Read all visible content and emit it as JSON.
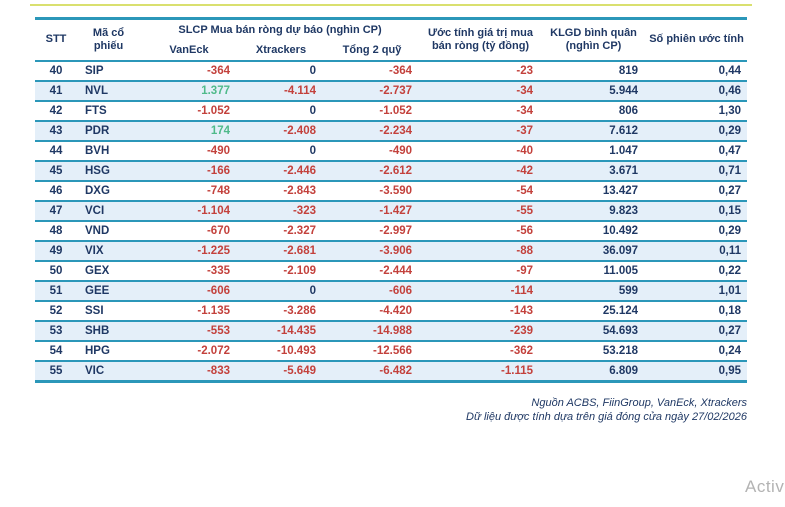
{
  "table": {
    "columns": [
      "stt",
      "code",
      "vaneck",
      "xtrackers",
      "total",
      "value",
      "klgd",
      "sessions"
    ],
    "headers": {
      "stt": "STT",
      "code_line1": "Mã cổ",
      "code_line2": "phiếu",
      "group": "SLCP Mua bán ròng dự báo (nghìn CP)",
      "vaneck": "VanEck",
      "xtrackers": "Xtrackers",
      "total": "Tổng 2 quỹ",
      "value_line1": "Ước tính giá trị mua",
      "value_line2": "bán ròng (tỷ đồng)",
      "klgd_line1": "KLGD bình quân",
      "klgd_line2": "(nghìn CP)",
      "sessions": "Số phiên ước tính"
    },
    "rows": [
      {
        "stt": "40",
        "code": "SIP",
        "vaneck": "-364",
        "xtrackers": "0",
        "total": "-364",
        "value": "-23",
        "klgd": "819",
        "sessions": "0,44"
      },
      {
        "stt": "41",
        "code": "NVL",
        "vaneck": "1.377",
        "xtrackers": "-4.114",
        "total": "-2.737",
        "value": "-34",
        "klgd": "5.944",
        "sessions": "0,46"
      },
      {
        "stt": "42",
        "code": "FTS",
        "vaneck": "-1.052",
        "xtrackers": "0",
        "total": "-1.052",
        "value": "-34",
        "klgd": "806",
        "sessions": "1,30"
      },
      {
        "stt": "43",
        "code": "PDR",
        "vaneck": "174",
        "xtrackers": "-2.408",
        "total": "-2.234",
        "value": "-37",
        "klgd": "7.612",
        "sessions": "0,29"
      },
      {
        "stt": "44",
        "code": "BVH",
        "vaneck": "-490",
        "xtrackers": "0",
        "total": "-490",
        "value": "-40",
        "klgd": "1.047",
        "sessions": "0,47"
      },
      {
        "stt": "45",
        "code": "HSG",
        "vaneck": "-166",
        "xtrackers": "-2.446",
        "total": "-2.612",
        "value": "-42",
        "klgd": "3.671",
        "sessions": "0,71"
      },
      {
        "stt": "46",
        "code": "DXG",
        "vaneck": "-748",
        "xtrackers": "-2.843",
        "total": "-3.590",
        "value": "-54",
        "klgd": "13.427",
        "sessions": "0,27"
      },
      {
        "stt": "47",
        "code": "VCI",
        "vaneck": "-1.104",
        "xtrackers": "-323",
        "total": "-1.427",
        "value": "-55",
        "klgd": "9.823",
        "sessions": "0,15"
      },
      {
        "stt": "48",
        "code": "VND",
        "vaneck": "-670",
        "xtrackers": "-2.327",
        "total": "-2.997",
        "value": "-56",
        "klgd": "10.492",
        "sessions": "0,29"
      },
      {
        "stt": "49",
        "code": "VIX",
        "vaneck": "-1.225",
        "xtrackers": "-2.681",
        "total": "-3.906",
        "value": "-88",
        "klgd": "36.097",
        "sessions": "0,11"
      },
      {
        "stt": "50",
        "code": "GEX",
        "vaneck": "-335",
        "xtrackers": "-2.109",
        "total": "-2.444",
        "value": "-97",
        "klgd": "11.005",
        "sessions": "0,22"
      },
      {
        "stt": "51",
        "code": "GEE",
        "vaneck": "-606",
        "xtrackers": "0",
        "total": "-606",
        "value": "-114",
        "klgd": "599",
        "sessions": "1,01"
      },
      {
        "stt": "52",
        "code": "SSI",
        "vaneck": "-1.135",
        "xtrackers": "-3.286",
        "total": "-4.420",
        "value": "-143",
        "klgd": "25.124",
        "sessions": "0,18"
      },
      {
        "stt": "53",
        "code": "SHB",
        "vaneck": "-553",
        "xtrackers": "-14.435",
        "total": "-14.988",
        "value": "-239",
        "klgd": "54.693",
        "sessions": "0,27"
      },
      {
        "stt": "54",
        "code": "HPG",
        "vaneck": "-2.072",
        "xtrackers": "-10.493",
        "total": "-12.566",
        "value": "-362",
        "klgd": "53.218",
        "sessions": "0,24"
      },
      {
        "stt": "55",
        "code": "VIC",
        "vaneck": "-833",
        "xtrackers": "-5.649",
        "total": "-6.482",
        "value": "-1.115",
        "klgd": "6.809",
        "sessions": "0,95"
      }
    ]
  },
  "footer": {
    "source": "Nguồn ACBS, FiinGroup, VanEck, Xtrackers",
    "note": "Dữ liệu được tính dựa trên giá đóng cửa ngày 27/02/2026"
  },
  "watermark": "Activ",
  "colors": {
    "accent_teal": "#2b97b9",
    "navy_text": "#1f3864",
    "negative_red": "#c3413c",
    "positive_green": "#4fba8a",
    "row_alt_bg": "#e4eff9",
    "top_line_yellow": "#d9e06f",
    "watermark_grey": "#b3b3b3"
  }
}
